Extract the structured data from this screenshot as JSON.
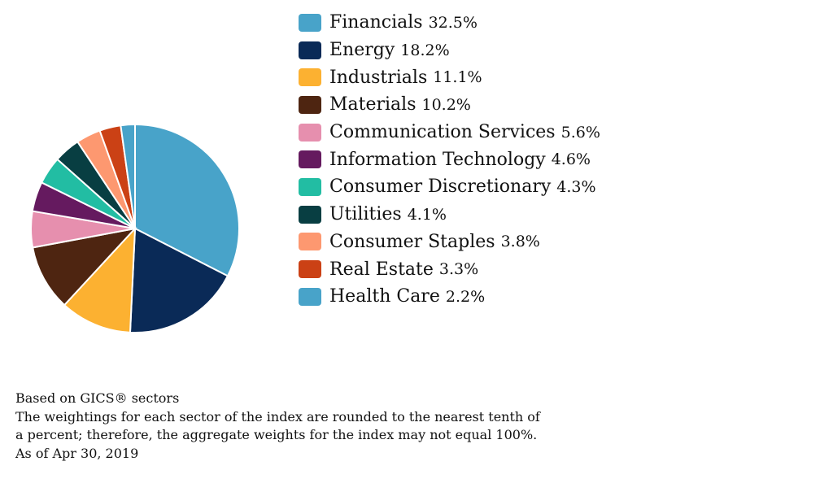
{
  "chart_data": {
    "type": "pie",
    "title": "",
    "categories": [
      "Financials",
      "Energy",
      "Industrials",
      "Materials",
      "Communication Services",
      "Information Technology",
      "Consumer Discretionary",
      "Utilities",
      "Consumer Staples",
      "Real Estate",
      "Health Care"
    ],
    "values": [
      32.5,
      18.2,
      11.1,
      10.2,
      5.6,
      4.6,
      4.3,
      4.1,
      3.8,
      3.3,
      2.2
    ],
    "labels": [
      "32.5%",
      "18.2%",
      "11.1%",
      "10.2%",
      "5.6%",
      "4.6%",
      "4.3%",
      "4.1%",
      "3.8%",
      "3.3%",
      "2.2%"
    ],
    "colors": [
      "#48a3c9",
      "#0a2a57",
      "#fcb131",
      "#4e2511",
      "#e68fae",
      "#651a5f",
      "#22bda3",
      "#083e42",
      "#fd9870",
      "#cb4115",
      "#48a3c9"
    ],
    "legend_placement": "right"
  },
  "notes": [
    "Based on GICS® sectors",
    "The weightings for each sector of the index are rounded to the nearest tenth of",
    "a percent; therefore, the aggregate weights for the index may not equal 100%.",
    "As of Apr 30, 2019"
  ]
}
